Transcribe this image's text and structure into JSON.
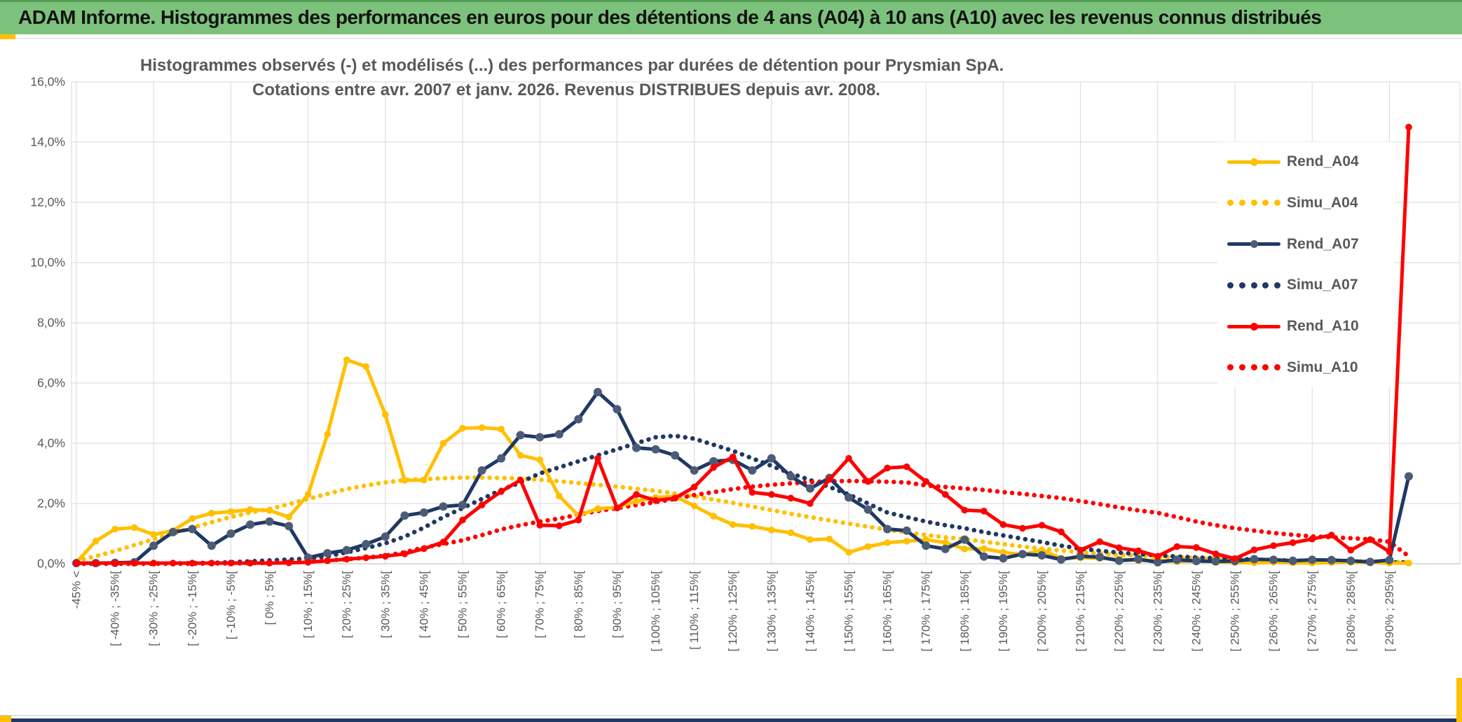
{
  "header": {
    "title": "ADAM Informe. Histogrammes des performances en euros pour des détentions de 4 ans (A04) à 10 ans (A10) avec les revenus connus distribués"
  },
  "chart": {
    "title_line1": "Histogrammes observés (-) et modélisés (...) des performances par durées de détention pour Prysmian SpA.",
    "title_line2": "Cotations entre avr. 2007 et janv. 2026. Revenus DISTRIBUES depuis avr. 2008."
  },
  "legend": {
    "items": [
      {
        "label": "Rend_A04",
        "style": "solid",
        "color": "#ffc000"
      },
      {
        "label": "Simu_A04",
        "style": "dotted",
        "color": "#ffc000"
      },
      {
        "label": "Rend_A07",
        "style": "solid",
        "color": "#1f3864"
      },
      {
        "label": "Simu_A07",
        "style": "dotted",
        "color": "#1f3864"
      },
      {
        "label": "Rend_A10",
        "style": "solid",
        "color": "#ff0000"
      },
      {
        "label": "Simu_A10",
        "style": "dotted",
        "color": "#ff0000"
      }
    ]
  },
  "colors": {
    "gold": "#ffc000",
    "navy": "#1f3864",
    "navy_marker": "#4c5c77",
    "red": "#ff0000",
    "grid": "#d9d9d9",
    "axis": "#bfbfbf",
    "text": "#595959",
    "header_green": "#7cc27c",
    "accent_yellow": "#ffc000",
    "bottom_navy": "#1f3864"
  },
  "chart_data": {
    "type": "line",
    "title": "Histogrammes observés (-) et modélisés (...) des performances par durées de détention pour Prysmian SpA. Cotations entre avr. 2007 et janv. 2026. Revenus DISTRIBUES depuis avr. 2008.",
    "xlabel": "",
    "ylabel": "",
    "ylim": [
      0,
      16
    ],
    "grid": true,
    "legend_position": "right-inside",
    "y_ticks": [
      "0,0%",
      "2,0%",
      "4,0%",
      "6,0%",
      "8,0%",
      "10,0%",
      "12,0%",
      "14,0%",
      "16,0%"
    ],
    "n_points": 70,
    "label_every_n_points": 2,
    "categories": [
      "-45% <",
      "[ -40% ; -35%[",
      "[ -30% ; -25%[",
      "[ -20% ; -15%[",
      "[ -10% ; -5%[",
      "[ 0% ; 5%[",
      "[ 10% ; 15%[",
      "[ 20% ; 25%[",
      "[ 30% ; 35%[",
      "[ 40% ; 45%[",
      "[ 50% ; 55%[",
      "[ 60% ; 65%[",
      "[ 70% ; 75%[",
      "[ 80% ; 85%[",
      "[ 90% ; 95%[",
      "[ 100% ; 105%[",
      "[ 110% ; 115%[",
      "[ 120% ; 125%[",
      "[ 130% ; 135%[",
      "[ 140% ; 145%[",
      "[ 150% ; 155%[",
      "[ 160% ; 165%[",
      "[ 170% ; 175%[",
      "[ 180% ; 185%[",
      "[ 190% ; 195%[",
      "[ 200% ; 205%[",
      "[ 210% ; 215%[",
      "[ 220% ; 225%[",
      "[ 230% ; 235%[",
      "[ 240% ; 245%[",
      "[ 250% ; 255%[",
      "[ 260% ; 265%[",
      "[ 270% ; 275%[",
      "[ 280% ; 285%[",
      "[ 290% ; 295%["
    ],
    "series": [
      {
        "name": "Simu_A04",
        "style": "dotted",
        "color": "#ffc000",
        "values": [
          0.1,
          0.25,
          0.42,
          0.62,
          0.81,
          1.0,
          1.2,
          1.38,
          1.55,
          1.7,
          1.82,
          1.98,
          2.15,
          2.32,
          2.48,
          2.6,
          2.7,
          2.78,
          2.81,
          2.84,
          2.86,
          2.86,
          2.85,
          2.83,
          2.79,
          2.74,
          2.68,
          2.62,
          2.56,
          2.49,
          2.42,
          2.33,
          2.24,
          2.13,
          2.02,
          1.9,
          1.78,
          1.66,
          1.55,
          1.44,
          1.33,
          1.23,
          1.13,
          1.04,
          0.95,
          0.88,
          0.82,
          0.73,
          0.65,
          0.57,
          0.5,
          0.44,
          0.38,
          0.34,
          0.3,
          0.27,
          0.24,
          0.21,
          0.19,
          0.17,
          0.15,
          0.13,
          0.12,
          0.11,
          0.1,
          0.09,
          0.08,
          0.07,
          0.06,
          0.05
        ]
      },
      {
        "name": "Simu_A07",
        "style": "dotted",
        "color": "#1f3864",
        "values": [
          0.0,
          0.0,
          0.0,
          0.0,
          0.01,
          0.01,
          0.02,
          0.03,
          0.05,
          0.08,
          0.11,
          0.14,
          0.17,
          0.25,
          0.38,
          0.52,
          0.68,
          0.9,
          1.2,
          1.55,
          1.85,
          2.15,
          2.45,
          2.7,
          3.0,
          3.2,
          3.4,
          3.6,
          3.8,
          4.0,
          4.2,
          4.25,
          4.15,
          3.95,
          3.75,
          3.5,
          3.25,
          3.0,
          2.78,
          2.55,
          2.3,
          2.0,
          1.7,
          1.55,
          1.4,
          1.28,
          1.18,
          1.05,
          0.94,
          0.83,
          0.72,
          0.6,
          0.5,
          0.43,
          0.37,
          0.32,
          0.28,
          0.24,
          0.21,
          0.18,
          0.16,
          0.14,
          0.12,
          0.1,
          0.09,
          0.08,
          0.07,
          0.06,
          0.05,
          0.04
        ]
      },
      {
        "name": "Simu_A10",
        "style": "dotted",
        "color": "#ff0000",
        "values": [
          0.0,
          0.0,
          0.0,
          0.0,
          0.0,
          0.0,
          0.0,
          0.01,
          0.01,
          0.02,
          0.03,
          0.05,
          0.08,
          0.11,
          0.15,
          0.2,
          0.27,
          0.38,
          0.54,
          0.65,
          0.78,
          0.95,
          1.14,
          1.28,
          1.4,
          1.5,
          1.63,
          1.75,
          1.85,
          1.95,
          2.05,
          2.15,
          2.28,
          2.38,
          2.48,
          2.56,
          2.62,
          2.67,
          2.71,
          2.74,
          2.75,
          2.74,
          2.72,
          2.7,
          2.6,
          2.55,
          2.5,
          2.45,
          2.38,
          2.32,
          2.25,
          2.18,
          2.08,
          1.98,
          1.87,
          1.77,
          1.69,
          1.55,
          1.4,
          1.28,
          1.18,
          1.1,
          1.02,
          0.96,
          0.91,
          0.88,
          0.85,
          0.81,
          0.73,
          0.25
        ]
      },
      {
        "name": "Rend_A04",
        "style": "solid",
        "color": "#ffc000",
        "marker_color": "#ffc000",
        "values": [
          0.05,
          0.75,
          1.15,
          1.2,
          0.97,
          1.1,
          1.5,
          1.68,
          1.73,
          1.8,
          1.77,
          1.55,
          2.3,
          4.3,
          6.77,
          6.55,
          4.95,
          2.77,
          2.78,
          4.0,
          4.5,
          4.52,
          4.47,
          3.6,
          3.45,
          2.25,
          1.6,
          1.83,
          1.87,
          2.08,
          2.2,
          2.24,
          1.92,
          1.58,
          1.3,
          1.24,
          1.12,
          1.03,
          0.8,
          0.82,
          0.38,
          0.57,
          0.7,
          0.75,
          0.8,
          0.7,
          0.49,
          0.5,
          0.38,
          0.3,
          0.45,
          0.18,
          0.2,
          0.18,
          0.15,
          0.1,
          0.12,
          0.07,
          0.1,
          0.06,
          0.04,
          0.03,
          0.05,
          0.03,
          0.02,
          0.04,
          0.05,
          0.04,
          0.02,
          0.02
        ]
      },
      {
        "name": "Rend_A07",
        "style": "solid",
        "color": "#1f3864",
        "marker_color": "#4c5c77",
        "values": [
          0.02,
          0.02,
          0.03,
          0.05,
          0.6,
          1.05,
          1.15,
          0.6,
          1.0,
          1.3,
          1.4,
          1.25,
          0.2,
          0.35,
          0.45,
          0.65,
          0.9,
          1.6,
          1.7,
          1.9,
          1.95,
          3.1,
          3.5,
          4.27,
          4.2,
          4.3,
          4.8,
          5.7,
          5.13,
          3.85,
          3.8,
          3.6,
          3.1,
          3.4,
          3.45,
          3.1,
          3.5,
          2.9,
          2.5,
          2.85,
          2.2,
          1.8,
          1.15,
          1.1,
          0.6,
          0.49,
          0.8,
          0.24,
          0.18,
          0.32,
          0.28,
          0.14,
          0.25,
          0.22,
          0.1,
          0.15,
          0.05,
          0.13,
          0.09,
          0.08,
          0.09,
          0.15,
          0.13,
          0.1,
          0.13,
          0.12,
          0.1,
          0.06,
          0.12,
          2.9
        ]
      },
      {
        "name": "Rend_A10",
        "style": "solid",
        "color": "#ff0000",
        "marker_color": "#ff0000",
        "values": [
          0.02,
          0.02,
          0.02,
          0.02,
          0.02,
          0.02,
          0.02,
          0.02,
          0.02,
          0.02,
          0.02,
          0.03,
          0.05,
          0.1,
          0.15,
          0.2,
          0.25,
          0.33,
          0.5,
          0.72,
          1.45,
          1.95,
          2.4,
          2.78,
          1.28,
          1.26,
          1.45,
          3.5,
          1.85,
          2.3,
          2.1,
          2.18,
          2.55,
          3.2,
          3.55,
          2.37,
          2.3,
          2.18,
          2.0,
          2.8,
          3.5,
          2.73,
          3.18,
          3.22,
          2.73,
          2.3,
          1.78,
          1.75,
          1.3,
          1.18,
          1.28,
          1.06,
          0.45,
          0.73,
          0.53,
          0.43,
          0.25,
          0.57,
          0.54,
          0.33,
          0.17,
          0.46,
          0.6,
          0.7,
          0.82,
          0.95,
          0.45,
          0.8,
          0.4,
          14.5
        ]
      }
    ]
  }
}
